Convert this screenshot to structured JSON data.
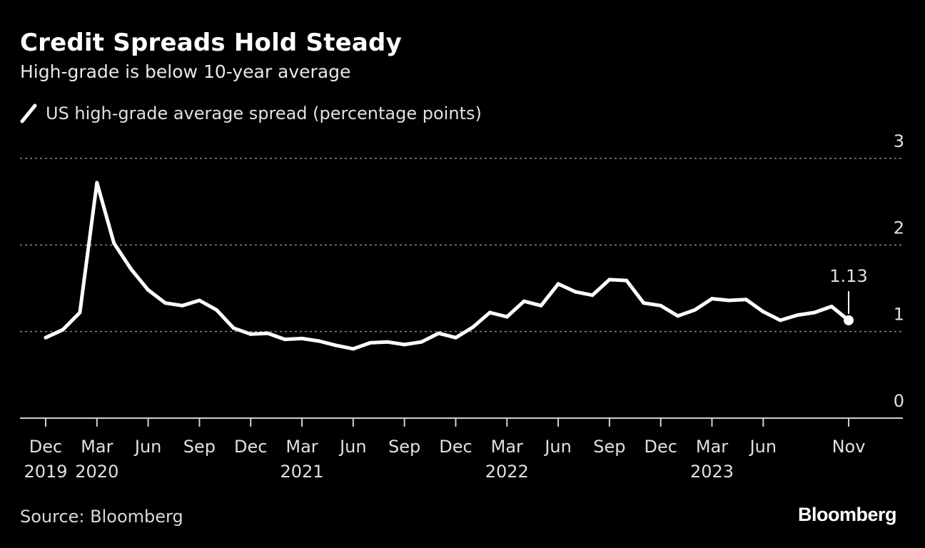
{
  "header": {
    "title": "Credit Spreads Hold Steady",
    "subtitle": "High-grade is below 10-year average"
  },
  "legend": {
    "label": "US high-grade average spread (percentage points)"
  },
  "footer": {
    "source": "Source: Bloomberg",
    "logo": "Bloomberg"
  },
  "colors": {
    "background": "#000000",
    "line": "#ffffff",
    "grid": "#8c8c8c"
  },
  "chart_data": {
    "type": "line",
    "title": "Credit Spreads Hold Steady",
    "subtitle": "High-grade is below 10-year average",
    "xlabel": "",
    "ylabel": "",
    "ylim": [
      0,
      3
    ],
    "yticks": [
      0,
      1,
      2,
      3
    ],
    "grid": true,
    "legend_position": "top-left",
    "x_ticks": [
      {
        "month": "2019-12",
        "label": "Dec",
        "year": "2019"
      },
      {
        "month": "2020-03",
        "label": "Mar",
        "year": "2020"
      },
      {
        "month": "2020-06",
        "label": "Jun",
        "year": ""
      },
      {
        "month": "2020-09",
        "label": "Sep",
        "year": ""
      },
      {
        "month": "2020-12",
        "label": "Dec",
        "year": ""
      },
      {
        "month": "2021-03",
        "label": "Mar",
        "year": "2021"
      },
      {
        "month": "2021-06",
        "label": "Jun",
        "year": ""
      },
      {
        "month": "2021-09",
        "label": "Sep",
        "year": ""
      },
      {
        "month": "2021-12",
        "label": "Dec",
        "year": ""
      },
      {
        "month": "2022-03",
        "label": "Mar",
        "year": "2022"
      },
      {
        "month": "2022-06",
        "label": "Jun",
        "year": ""
      },
      {
        "month": "2022-09",
        "label": "Sep",
        "year": ""
      },
      {
        "month": "2022-12",
        "label": "Dec",
        "year": ""
      },
      {
        "month": "2023-03",
        "label": "Mar",
        "year": "2023"
      },
      {
        "month": "2023-06",
        "label": "Jun",
        "year": ""
      },
      {
        "month": "2023-11",
        "label": "Nov",
        "year": ""
      }
    ],
    "series": [
      {
        "name": "US high-grade average spread (percentage points)",
        "x": [
          "2019-12",
          "2020-01",
          "2020-02",
          "2020-03",
          "2020-04",
          "2020-05",
          "2020-06",
          "2020-07",
          "2020-08",
          "2020-09",
          "2020-10",
          "2020-11",
          "2020-12",
          "2021-01",
          "2021-02",
          "2021-03",
          "2021-04",
          "2021-05",
          "2021-06",
          "2021-07",
          "2021-08",
          "2021-09",
          "2021-10",
          "2021-11",
          "2021-12",
          "2022-01",
          "2022-02",
          "2022-03",
          "2022-04",
          "2022-05",
          "2022-06",
          "2022-07",
          "2022-08",
          "2022-09",
          "2022-10",
          "2022-11",
          "2022-12",
          "2023-01",
          "2023-02",
          "2023-03",
          "2023-04",
          "2023-05",
          "2023-06",
          "2023-07",
          "2023-08",
          "2023-09",
          "2023-10",
          "2023-11"
        ],
        "values": [
          0.93,
          1.02,
          1.22,
          2.72,
          2.02,
          1.72,
          1.48,
          1.33,
          1.3,
          1.36,
          1.25,
          1.04,
          0.97,
          0.98,
          0.91,
          0.92,
          0.89,
          0.84,
          0.8,
          0.87,
          0.88,
          0.85,
          0.88,
          0.98,
          0.93,
          1.05,
          1.22,
          1.17,
          1.35,
          1.3,
          1.55,
          1.46,
          1.42,
          1.6,
          1.59,
          1.33,
          1.3,
          1.18,
          1.25,
          1.38,
          1.36,
          1.37,
          1.23,
          1.13,
          1.19,
          1.22,
          1.29,
          1.13
        ]
      }
    ],
    "annotations": [
      {
        "x": "2023-11",
        "y": 1.13,
        "text": "1.13"
      }
    ]
  }
}
